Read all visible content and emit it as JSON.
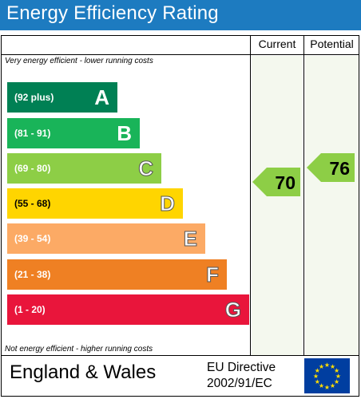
{
  "title": "Energy Efficiency Rating",
  "columns": {
    "current": "Current",
    "potential": "Potential"
  },
  "notes": {
    "top": "Very energy efficient - lower running costs",
    "bottom": "Not energy efficient - higher running costs"
  },
  "bands": [
    {
      "range": "(92 plus)",
      "letter": "A",
      "color": "#008054"
    },
    {
      "range": "(81 - 91)",
      "letter": "B",
      "color": "#19b459"
    },
    {
      "range": "(69 - 80)",
      "letter": "C",
      "color": "#8dce46"
    },
    {
      "range": "(55 - 68)",
      "letter": "D",
      "color": "#ffd500"
    },
    {
      "range": "(39 - 54)",
      "letter": "E",
      "color": "#fcaa65"
    },
    {
      "range": "(21 - 38)",
      "letter": "F",
      "color": "#ef8023"
    },
    {
      "range": "(1 - 20)",
      "letter": "G",
      "color": "#e9153b"
    }
  ],
  "ratings": {
    "current": {
      "value": "70",
      "band": "C",
      "color": "#8dce46"
    },
    "potential": {
      "value": "76",
      "band": "C",
      "color": "#8dce46"
    }
  },
  "footer": {
    "region": "England & Wales",
    "directive_line1": "EU Directive",
    "directive_line2": "2002/91/EC",
    "flag_icon": "eu-flag-icon"
  }
}
